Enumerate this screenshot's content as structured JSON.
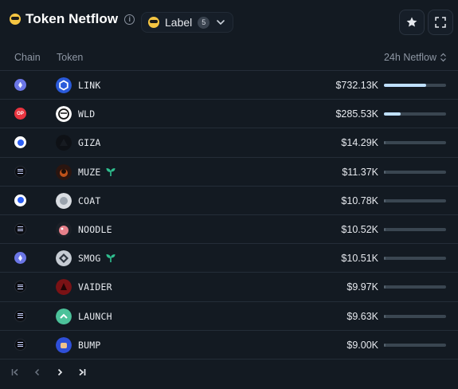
{
  "header": {
    "title": "Token Netflow",
    "label_button": "Label",
    "label_count": "5"
  },
  "table": {
    "columns": {
      "chain": "Chain",
      "token": "Token",
      "netflow": "24h Netflow"
    },
    "rows": [
      {
        "chain": "ethereum",
        "token": "LINK",
        "value": "$732.13K",
        "fill": 0.68,
        "icon": "chainlink-hexagon-icon"
      },
      {
        "chain": "optimism",
        "token": "WLD",
        "value": "$285.53K",
        "fill": 0.27,
        "icon": "worldcoin-icon"
      },
      {
        "chain": "base",
        "token": "GIZA",
        "value": "$14.29K",
        "fill": 0.02,
        "icon": "giza-icon"
      },
      {
        "chain": "solana",
        "token": "MUZE",
        "value": "$11.37K",
        "fill": 0.02,
        "icon": "muze-icon",
        "new": true
      },
      {
        "chain": "base",
        "token": "COAT",
        "value": "$10.78K",
        "fill": 0.02,
        "icon": "coat-icon"
      },
      {
        "chain": "solana",
        "token": "NOODLE",
        "value": "$10.52K",
        "fill": 0.02,
        "icon": "noodle-icon"
      },
      {
        "chain": "ethereum",
        "token": "SMOG",
        "value": "$10.51K",
        "fill": 0.02,
        "icon": "smog-icon",
        "new": true
      },
      {
        "chain": "solana",
        "token": "VAIDER",
        "value": "$9.97K",
        "fill": 0.02,
        "icon": "vaider-icon"
      },
      {
        "chain": "solana",
        "token": "LAUNCH",
        "value": "$9.63K",
        "fill": 0.02,
        "icon": "launch-icon"
      },
      {
        "chain": "solana",
        "token": "BUMP",
        "value": "$9.00K",
        "fill": 0.02,
        "icon": "bump-icon"
      }
    ]
  },
  "colors": {
    "background": "#131a22",
    "bar_fill": "#bfe0ff",
    "bar_track": "#3a4651",
    "new_sprout": "#2fbf8f"
  }
}
